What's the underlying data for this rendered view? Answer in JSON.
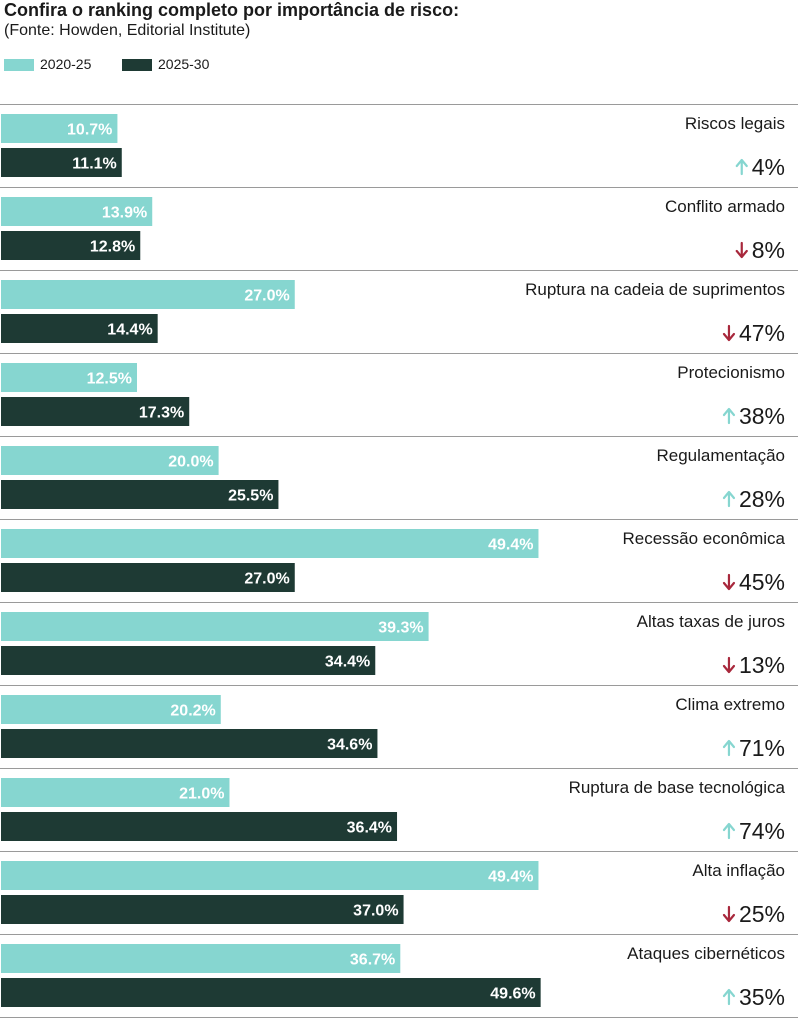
{
  "chart_data": {
    "type": "bar",
    "orientation": "horizontal",
    "title": "Confira o ranking completo por importância de risco:",
    "subtitle": "(Fonte: Howden, Editorial Institute)",
    "legend_placement": "top-left",
    "xlim": [
      0,
      72
    ],
    "grid": false,
    "series": [
      {
        "name": "2020-25",
        "color": "#86d6d0"
      },
      {
        "name": "2025-30",
        "color": "#1e3a34"
      }
    ],
    "rows": [
      {
        "label": "Riscos legais",
        "v2020": 10.7,
        "v2025": 11.1,
        "t2020": "10.7%",
        "t2025": "11.1%",
        "change": "4%",
        "direction": "up"
      },
      {
        "label": "Conflito armado",
        "v2020": 13.9,
        "v2025": 12.8,
        "t2020": "13.9%",
        "t2025": "12.8%",
        "change": "8%",
        "direction": "down"
      },
      {
        "label": "Ruptura na cadeia de suprimentos",
        "v2020": 27.0,
        "v2025": 14.4,
        "t2020": "27.0%",
        "t2025": "14.4%",
        "change": "47%",
        "direction": "down"
      },
      {
        "label": "Protecionismo",
        "v2020": 12.5,
        "v2025": 17.3,
        "t2020": "12.5%",
        "t2025": "17.3%",
        "change": "38%",
        "direction": "up"
      },
      {
        "label": "Regulamentação",
        "v2020": 20.0,
        "v2025": 25.5,
        "t2020": "20.0%",
        "t2025": "25.5%",
        "change": "28%",
        "direction": "up"
      },
      {
        "label": "Recessão econômica",
        "v2020": 49.4,
        "v2025": 27.0,
        "t2020": "49.4%",
        "t2025": "27.0%",
        "change": "45%",
        "direction": "down"
      },
      {
        "label": "Altas taxas de juros",
        "v2020": 39.3,
        "v2025": 34.4,
        "t2020": "39.3%",
        "t2025": "34.4%",
        "change": "13%",
        "direction": "down"
      },
      {
        "label": "Clima extremo",
        "v2020": 20.2,
        "v2025": 34.6,
        "t2020": "20.2%",
        "t2025": "34.6%",
        "change": "71%",
        "direction": "up"
      },
      {
        "label": "Ruptura de base tecnológica",
        "v2020": 21.0,
        "v2025": 36.4,
        "t2020": "21.0%",
        "t2025": "36.4%",
        "change": "74%",
        "direction": "up"
      },
      {
        "label": "Alta inflação",
        "v2020": 49.4,
        "v2025": 37.0,
        "t2020": "49.4%",
        "t2025": "37.0%",
        "change": "25%",
        "direction": "down"
      },
      {
        "label": "Ataques cibernéticos",
        "v2020": 36.7,
        "v2025": 49.6,
        "t2020": "36.7%",
        "t2025": "49.6%",
        "change": "35%",
        "direction": "up"
      }
    ],
    "colors": {
      "up_arrow": "#86d6d0",
      "down_arrow": "#a8283c",
      "separator": "#9a9a9a",
      "bar_label": "#ffffff"
    }
  }
}
